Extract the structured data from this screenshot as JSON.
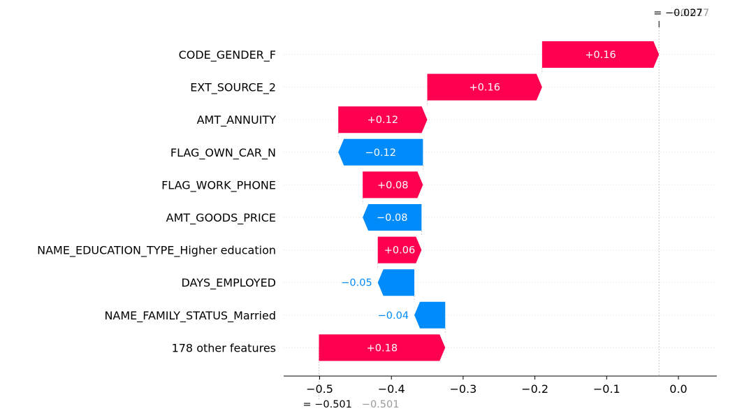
{
  "chart_data": {
    "type": "waterfall",
    "title": "",
    "xlabel": "",
    "ylabel": "",
    "xlim": [
      -0.55,
      0.05
    ],
    "xticks": [
      -0.5,
      -0.4,
      -0.3,
      -0.2,
      -0.1,
      0.0
    ],
    "xtick_labels": [
      "−0.5",
      "−0.4",
      "−0.3",
      "−0.2",
      "−0.1",
      "0.0"
    ],
    "base_value": -0.501,
    "base_label": "= −0.501",
    "base_label_ghost": "−0.501",
    "output_value": -0.027,
    "output_label": "= −0.027",
    "output_label_ghost": "−0.027",
    "colors": {
      "positive": "#ff0051",
      "negative": "#008bfb",
      "grid": "#dddddd",
      "ghost": "#9a9a9a"
    },
    "features": [
      {
        "name": "CODE_GENDER_F",
        "value": 0.16,
        "label": "+0.16",
        "start": -0.19,
        "end": -0.027
      },
      {
        "name": "EXT_SOURCE_2",
        "value": 0.16,
        "label": "+0.16",
        "start": -0.35,
        "end": -0.19
      },
      {
        "name": "AMT_ANNUITY",
        "value": 0.12,
        "label": "+0.12",
        "start": -0.474,
        "end": -0.35
      },
      {
        "name": "FLAG_OWN_CAR_N",
        "value": -0.12,
        "label": "−0.12",
        "start": -0.356,
        "end": -0.474
      },
      {
        "name": "FLAG_WORK_PHONE",
        "value": 0.08,
        "label": "+0.08",
        "start": -0.44,
        "end": -0.356
      },
      {
        "name": "AMT_GOODS_PRICE",
        "value": -0.08,
        "label": "−0.08",
        "start": -0.358,
        "end": -0.44
      },
      {
        "name": "NAME_EDUCATION_TYPE_Higher education",
        "value": 0.06,
        "label": "+0.06",
        "start": -0.419,
        "end": -0.358
      },
      {
        "name": "DAYS_EMPLOYED",
        "value": -0.05,
        "label": "−0.05",
        "start": -0.368,
        "end": -0.419
      },
      {
        "name": "NAME_FAMILY_STATUS_Married",
        "value": -0.04,
        "label": "−0.04",
        "start": -0.325,
        "end": -0.368
      },
      {
        "name": "178 other features",
        "value": 0.18,
        "label": "+0.18",
        "start": -0.501,
        "end": -0.325
      }
    ]
  }
}
